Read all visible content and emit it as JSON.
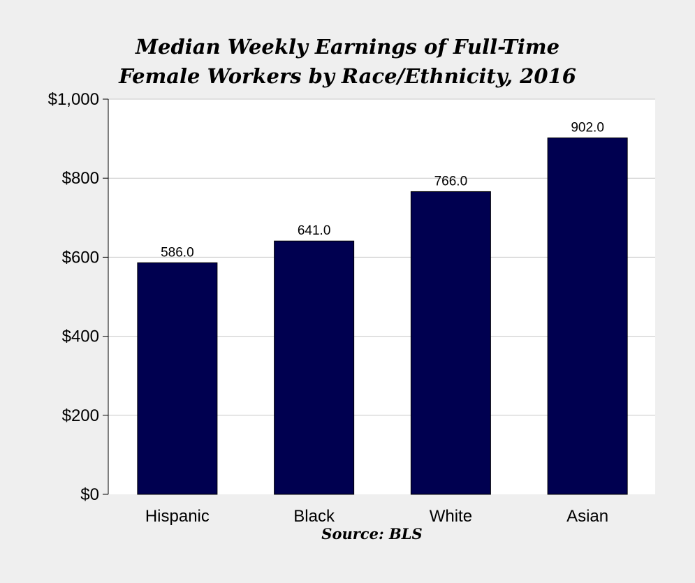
{
  "chart_data": {
    "type": "bar",
    "title_lines": [
      "Median Weekly Earnings of Full-Time",
      "Female Workers by Race/Ethnicity, 2016"
    ],
    "categories": [
      "Hispanic",
      "Black",
      "White",
      "Asian"
    ],
    "values": [
      586.0,
      641.0,
      766.0,
      902.0
    ],
    "data_labels": [
      "586.0",
      "641.0",
      "766.0",
      "902.0"
    ],
    "ylim": [
      0,
      1000
    ],
    "yticks": [
      0,
      200,
      400,
      600,
      800,
      1000
    ],
    "ytick_labels": [
      "$0",
      "$200",
      "$400",
      "$600",
      "$800",
      "$1,000"
    ],
    "xlabel": "",
    "ylabel": "",
    "grid": true,
    "bar_color": "#000050",
    "source": "Source: BLS"
  }
}
